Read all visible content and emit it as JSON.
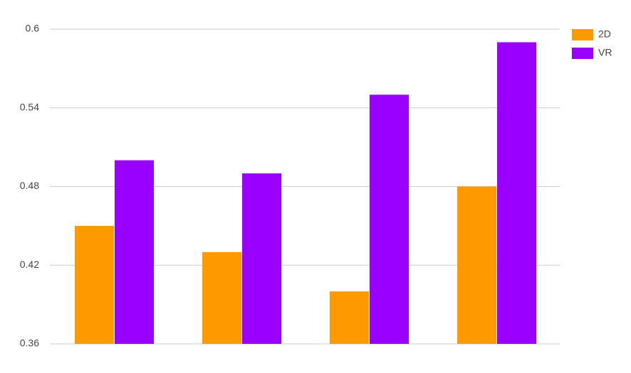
{
  "chart_data": {
    "type": "bar",
    "categories": [
      null,
      null,
      null,
      null
    ],
    "series": [
      {
        "name": "2D",
        "color": "#ff9900",
        "values": [
          0.45,
          0.43,
          0.4,
          0.48
        ]
      },
      {
        "name": "VR",
        "color": "#9900ff",
        "values": [
          0.5,
          0.49,
          0.55,
          0.59
        ]
      }
    ],
    "ylim": [
      0.36,
      0.6
    ],
    "yticks": [
      0.36,
      0.42,
      0.48,
      0.54,
      0.6
    ],
    "grid": true,
    "legend": "top-right"
  }
}
